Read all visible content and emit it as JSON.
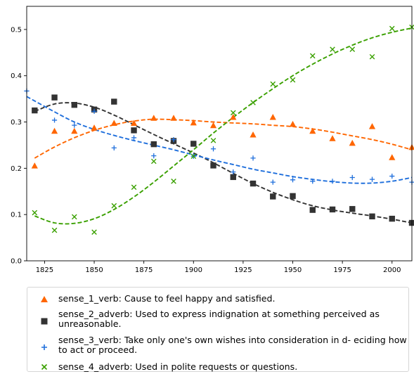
{
  "chart_data": {
    "type": "scatter",
    "title": "",
    "xlabel": "",
    "ylabel": "",
    "xlim": [
      1816,
      2010
    ],
    "ylim": [
      0.0,
      0.55
    ],
    "xticks": [
      1825,
      1850,
      1875,
      1900,
      1925,
      1950,
      1975,
      2000
    ],
    "yticks": [
      0.0,
      0.1,
      0.2,
      0.3,
      0.4,
      0.5
    ],
    "xtick_labels": [
      "1825",
      "1850",
      "1875",
      "1900",
      "1925",
      "1950",
      "1975",
      "2000"
    ],
    "ytick_labels": [
      "0.0",
      "0.1",
      "0.2",
      "0.3",
      "0.4",
      "0.5"
    ],
    "grid": false,
    "legend_position": "below",
    "series": [
      {
        "name": "sense_1_verb: Cause to feel happy and satisfied.",
        "marker": "triangle",
        "color": "#ff6600",
        "x": [
          1820,
          1830,
          1840,
          1850,
          1860,
          1870,
          1880,
          1890,
          1900,
          1910,
          1920,
          1930,
          1940,
          1950,
          1960,
          1970,
          1980,
          1990,
          2000,
          2010
        ],
        "y": [
          0.205,
          0.28,
          0.28,
          0.287,
          0.297,
          0.297,
          0.308,
          0.308,
          0.298,
          0.292,
          0.31,
          0.272,
          0.31,
          0.295,
          0.28,
          0.264,
          0.254,
          0.29,
          0.223,
          0.245
        ],
        "trend_x": [
          1820,
          1830,
          1840,
          1850,
          1860,
          1870,
          1880,
          1890,
          1900,
          1910,
          1920,
          1930,
          1940,
          1950,
          1960,
          1970,
          1980,
          1990,
          2000,
          2010
        ],
        "trend_y": [
          0.222,
          0.246,
          0.266,
          0.282,
          0.294,
          0.302,
          0.306,
          0.305,
          0.303,
          0.3,
          0.298,
          0.296,
          0.293,
          0.29,
          0.285,
          0.278,
          0.27,
          0.262,
          0.252,
          0.24
        ]
      },
      {
        "name": "sense_2_adverb: Used to express indignation at something perceived as unreasonable.",
        "marker": "square",
        "color": "#333333",
        "x": [
          1820,
          1830,
          1840,
          1850,
          1860,
          1870,
          1880,
          1890,
          1900,
          1910,
          1920,
          1930,
          1940,
          1950,
          1960,
          1970,
          1980,
          1990,
          2000,
          2010
        ],
        "y": [
          0.325,
          0.353,
          0.337,
          0.327,
          0.344,
          0.282,
          0.252,
          0.259,
          0.253,
          0.206,
          0.181,
          0.167,
          0.139,
          0.14,
          0.11,
          0.111,
          0.112,
          0.096,
          0.091,
          0.082
        ],
        "trend_x": [
          1820,
          1830,
          1840,
          1850,
          1860,
          1870,
          1880,
          1890,
          1900,
          1910,
          1920,
          1930,
          1940,
          1950,
          1960,
          1970,
          1980,
          1990,
          2000,
          2010
        ],
        "trend_y": [
          0.323,
          0.339,
          0.341,
          0.332,
          0.315,
          0.294,
          0.273,
          0.253,
          0.233,
          0.212,
          0.189,
          0.167,
          0.148,
          0.132,
          0.119,
          0.11,
          0.103,
          0.097,
          0.09,
          0.082
        ]
      },
      {
        "name": "sense_3_verb: Take only one's own wishes into consideration in d- eciding how to act or proceed.",
        "marker": "plus",
        "color": "#1f6fdc",
        "x": [
          1816,
          1830,
          1840,
          1850,
          1860,
          1870,
          1880,
          1890,
          1900,
          1910,
          1920,
          1930,
          1940,
          1950,
          1960,
          1970,
          1980,
          1990,
          2000,
          2010
        ],
        "y": [
          0.367,
          0.304,
          0.293,
          0.323,
          0.244,
          0.266,
          0.227,
          0.262,
          0.226,
          0.242,
          0.192,
          0.222,
          0.17,
          0.175,
          0.172,
          0.172,
          0.18,
          0.176,
          0.183,
          0.17
        ],
        "trend_x": [
          1816,
          1830,
          1840,
          1850,
          1860,
          1870,
          1880,
          1890,
          1900,
          1910,
          1920,
          1930,
          1940,
          1950,
          1960,
          1970,
          1980,
          1990,
          2000,
          2010
        ],
        "trend_y": [
          0.355,
          0.322,
          0.3,
          0.284,
          0.271,
          0.26,
          0.25,
          0.24,
          0.229,
          0.218,
          0.208,
          0.198,
          0.19,
          0.182,
          0.176,
          0.171,
          0.168,
          0.168,
          0.172,
          0.18
        ]
      },
      {
        "name": "sense_4_adverb: Used in polite requests or questions.",
        "marker": "x",
        "color": "#3aa000",
        "x": [
          1820,
          1830,
          1840,
          1850,
          1860,
          1870,
          1880,
          1890,
          1900,
          1910,
          1920,
          1930,
          1940,
          1950,
          1960,
          1970,
          1980,
          1990,
          2000,
          2010
        ],
        "y": [
          0.104,
          0.066,
          0.095,
          0.062,
          0.119,
          0.159,
          0.215,
          0.172,
          0.226,
          0.26,
          0.32,
          0.342,
          0.382,
          0.391,
          0.443,
          0.457,
          0.457,
          0.441,
          0.502,
          0.505
        ],
        "trend_x": [
          1820,
          1830,
          1840,
          1850,
          1860,
          1870,
          1880,
          1890,
          1900,
          1910,
          1920,
          1930,
          1940,
          1950,
          1960,
          1970,
          1980,
          1990,
          2000,
          2010
        ],
        "trend_y": [
          0.097,
          0.082,
          0.081,
          0.091,
          0.111,
          0.138,
          0.17,
          0.205,
          0.24,
          0.276,
          0.31,
          0.342,
          0.372,
          0.4,
          0.425,
          0.447,
          0.466,
          0.482,
          0.494,
          0.503
        ]
      }
    ]
  },
  "legend": {
    "items": [
      {
        "label": "sense_1_verb: Cause to feel happy and satisfied."
      },
      {
        "label": "sense_2_adverb: Used to express indignation at something perceived as unreasonable."
      },
      {
        "label": "sense_3_verb: Take only one's own wishes into consideration in d- eciding how to act or proceed."
      },
      {
        "label": "sense_4_adverb: Used in polite requests or questions."
      }
    ]
  }
}
